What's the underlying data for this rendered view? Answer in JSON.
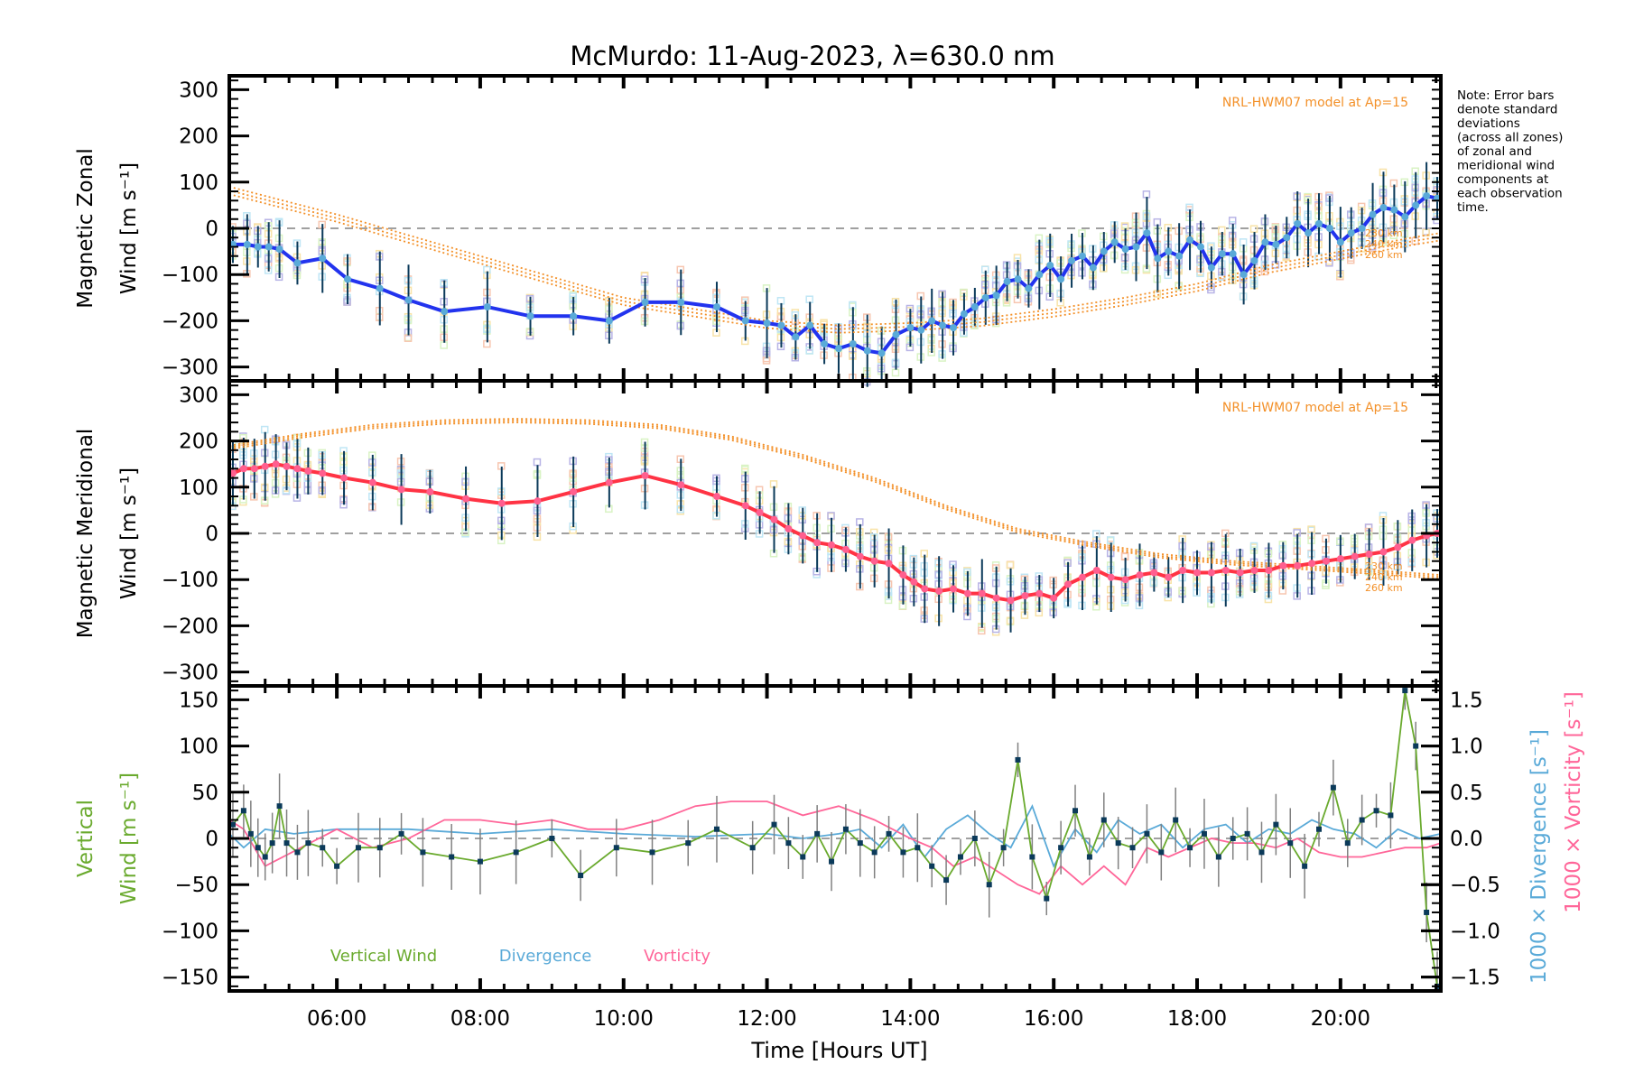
{
  "chart_data": {
    "type": "line",
    "title": "McMurdo: 11-Aug-2023, λ=630.0 nm",
    "xlabel": "Time [Hours UT]",
    "x_ticks": [
      "06:00",
      "08:00",
      "10:00",
      "12:00",
      "14:00",
      "16:00",
      "18:00",
      "20:00"
    ],
    "x_tick_hours": [
      6,
      8,
      10,
      12,
      14,
      16,
      18,
      20
    ],
    "xlim_hours": [
      4.5,
      21.4
    ],
    "note": [
      "Note: Error bars",
      "denote standard",
      "deviations",
      "(across all zones)",
      "of zonal and",
      "meridional wind",
      "components at",
      "each observation",
      "time."
    ],
    "colors": {
      "zonal_line": "#2233ee",
      "zonal_points": "#5aaad8",
      "meridional_line": "#ff3344",
      "meridional_points": "#ff5f8f",
      "model": "#f39028",
      "errorbar": "#0b3a5a",
      "vertical": "#6aaa2e",
      "divergence": "#5aaad8",
      "vorticity": "#ff6699",
      "zero_line": "#808080"
    },
    "panels": [
      {
        "id": "zonal",
        "ylabel_line1": "Magnetic Zonal",
        "ylabel_line2": "Wind [m s⁻¹]",
        "ylim": [
          -330,
          330
        ],
        "y_ticks": [
          300,
          200,
          100,
          0,
          -100,
          -200,
          -300
        ],
        "y_tick_labels": [
          "300",
          "200",
          "100",
          "0",
          "−100",
          "−200",
          "−300"
        ],
        "model_label": "NRL-HWM07 model at Ap=15",
        "model_altitudes": [
          "230 km",
          "240 km",
          "260 km"
        ],
        "series": [
          {
            "name": "Zonal wind",
            "x": [
              4.55,
              4.75,
              4.9,
              5.05,
              5.2,
              5.45,
              5.8,
              6.15,
              6.6,
              7.0,
              7.5,
              8.1,
              8.7,
              9.3,
              9.8,
              10.3,
              10.8,
              11.3,
              11.7,
              12.0,
              12.2,
              12.4,
              12.6,
              12.8,
              13.0,
              13.2,
              13.4,
              13.6,
              13.8,
              14.0,
              14.15,
              14.3,
              14.45,
              14.6,
              14.75,
              14.9,
              15.05,
              15.2,
              15.35,
              15.5,
              15.65,
              15.8,
              15.95,
              16.1,
              16.25,
              16.4,
              16.55,
              16.7,
              16.85,
              17.0,
              17.15,
              17.3,
              17.45,
              17.6,
              17.75,
              17.9,
              18.05,
              18.2,
              18.35,
              18.5,
              18.65,
              18.8,
              18.95,
              19.1,
              19.25,
              19.4,
              19.55,
              19.7,
              19.85,
              20.0,
              20.15,
              20.3,
              20.45,
              20.6,
              20.75,
              20.9,
              21.05,
              21.2,
              21.35
            ],
            "y": [
              -35,
              -35,
              -40,
              -40,
              -45,
              -75,
              -65,
              -110,
              -130,
              -155,
              -180,
              -170,
              -190,
              -190,
              -200,
              -160,
              -160,
              -170,
              -200,
              -205,
              -210,
              -235,
              -210,
              -250,
              -260,
              -250,
              -265,
              -270,
              -230,
              -215,
              -220,
              -200,
              -210,
              -215,
              -185,
              -170,
              -150,
              -145,
              -115,
              -110,
              -130,
              -100,
              -80,
              -110,
              -70,
              -60,
              -85,
              -50,
              -30,
              -45,
              -40,
              -10,
              -65,
              -50,
              -60,
              -25,
              -40,
              -85,
              -55,
              -55,
              -100,
              -70,
              -30,
              -35,
              -20,
              10,
              -10,
              10,
              0,
              -30,
              -10,
              0,
              30,
              45,
              40,
              25,
              50,
              70,
              65
            ]
          },
          {
            "name": "HWM07 model",
            "x": [
              4.5,
              6,
              8,
              10,
              12,
              13,
              14,
              15,
              16,
              17,
              18,
              19,
              20,
              21,
              21.4
            ],
            "y": [
              90,
              30,
              -60,
              -150,
              -200,
              -210,
              -205,
              -195,
              -175,
              -150,
              -120,
              -80,
              -50,
              -20,
              -10
            ]
          }
        ]
      },
      {
        "id": "meridional",
        "ylabel_line1": "Magnetic Meridional",
        "ylabel_line2": "Wind [m s⁻¹]",
        "ylim": [
          -330,
          330
        ],
        "y_ticks": [
          300,
          200,
          100,
          0,
          -100,
          -200,
          -300
        ],
        "y_tick_labels": [
          "300",
          "200",
          "100",
          "0",
          "−100",
          "−200",
          "−300"
        ],
        "model_label": "NRL-HWM07 model at Ap=15",
        "model_altitudes": [
          "230 km",
          "240 km",
          "260 km"
        ],
        "series": [
          {
            "name": "Meridional wind",
            "x": [
              4.55,
              4.7,
              4.85,
              5.0,
              5.15,
              5.3,
              5.45,
              5.6,
              5.8,
              6.1,
              6.5,
              6.9,
              7.3,
              7.8,
              8.3,
              8.8,
              9.3,
              9.8,
              10.3,
              10.8,
              11.3,
              11.7,
              11.9,
              12.1,
              12.3,
              12.5,
              12.7,
              12.9,
              13.1,
              13.3,
              13.5,
              13.7,
              13.9,
              14.05,
              14.2,
              14.4,
              14.6,
              14.8,
              15.0,
              15.2,
              15.4,
              15.6,
              15.8,
              16.0,
              16.2,
              16.4,
              16.6,
              16.8,
              17.0,
              17.2,
              17.4,
              17.6,
              17.8,
              18.0,
              18.2,
              18.4,
              18.6,
              18.8,
              19.0,
              19.2,
              19.4,
              19.6,
              19.8,
              20.0,
              20.2,
              20.4,
              20.6,
              20.8,
              21.0,
              21.2,
              21.35
            ],
            "y": [
              130,
              140,
              140,
              145,
              150,
              145,
              140,
              135,
              130,
              120,
              110,
              95,
              90,
              75,
              65,
              70,
              90,
              110,
              125,
              105,
              80,
              60,
              45,
              30,
              10,
              -5,
              -20,
              -25,
              -35,
              -50,
              -60,
              -65,
              -90,
              -105,
              -120,
              -125,
              -120,
              -130,
              -130,
              -140,
              -145,
              -135,
              -130,
              -140,
              -110,
              -95,
              -80,
              -95,
              -100,
              -90,
              -85,
              -95,
              -80,
              -85,
              -85,
              -80,
              -85,
              -80,
              -80,
              -70,
              -70,
              -65,
              -60,
              -55,
              -50,
              -45,
              -40,
              -30,
              -15,
              -5,
              0
            ]
          },
          {
            "name": "HWM07 model",
            "x": [
              4.5,
              5.5,
              6.5,
              7.5,
              8.5,
              9.5,
              10.5,
              11.5,
              12.5,
              13.5,
              14.5,
              15.5,
              16.5,
              17.5,
              18.5,
              19.5,
              20.5,
              21.4
            ],
            "y": [
              190,
              215,
              235,
              245,
              248,
              245,
              235,
              210,
              170,
              120,
              60,
              10,
              -20,
              -45,
              -60,
              -70,
              -80,
              -90
            ]
          }
        ]
      },
      {
        "id": "vertical",
        "ylabel_line1": "Vertical",
        "ylabel_line2": "Wind [m s⁻¹]",
        "ylim": [
          -165,
          165
        ],
        "y_ticks": [
          150,
          100,
          50,
          0,
          -50,
          -100,
          -150
        ],
        "y_tick_labels": [
          "150",
          "100",
          "50",
          "0",
          "−50",
          "−100",
          "−150"
        ],
        "y2label_1": "1000 × Divergence [s⁻¹]",
        "y2label_2": "1000 × Vorticity [s⁻¹]",
        "y2lim": [
          -1.65,
          1.65
        ],
        "y2_ticks": [
          1.5,
          1.0,
          0.5,
          0.0,
          -0.5,
          -1.0,
          -1.5
        ],
        "y2_tick_labels": [
          "1.5",
          "1.0",
          "0.5",
          "0.0",
          "−0.5",
          "−1.0",
          "−1.5"
        ],
        "legend": [
          "Vertical Wind",
          "Divergence",
          "Vorticity"
        ],
        "series": [
          {
            "name": "Vertical Wind",
            "x": [
              4.55,
              4.7,
              4.8,
              4.9,
              5.0,
              5.1,
              5.2,
              5.3,
              5.45,
              5.6,
              5.8,
              6.0,
              6.3,
              6.6,
              6.9,
              7.2,
              7.6,
              8.0,
              8.5,
              9.0,
              9.4,
              9.9,
              10.4,
              10.9,
              11.3,
              11.8,
              12.1,
              12.3,
              12.5,
              12.7,
              12.9,
              13.1,
              13.3,
              13.5,
              13.7,
              13.9,
              14.1,
              14.3,
              14.5,
              14.7,
              14.9,
              15.1,
              15.3,
              15.5,
              15.7,
              15.9,
              16.1,
              16.3,
              16.5,
              16.7,
              16.9,
              17.1,
              17.3,
              17.5,
              17.7,
              17.9,
              18.1,
              18.3,
              18.5,
              18.7,
              18.9,
              19.1,
              19.3,
              19.5,
              19.7,
              19.9,
              20.1,
              20.3,
              20.5,
              20.7,
              20.9,
              21.05,
              21.2,
              21.35
            ],
            "y": [
              15,
              30,
              5,
              -10,
              -20,
              -5,
              35,
              -5,
              -15,
              -5,
              -10,
              -30,
              -10,
              -10,
              5,
              -15,
              -20,
              -25,
              -15,
              0,
              -40,
              -10,
              -15,
              -5,
              10,
              -10,
              15,
              -5,
              -20,
              5,
              -25,
              10,
              -5,
              -15,
              5,
              -15,
              -10,
              -30,
              -45,
              -20,
              0,
              -50,
              -10,
              85,
              -20,
              -65,
              -10,
              30,
              -20,
              20,
              -5,
              -10,
              5,
              -15,
              20,
              -10,
              5,
              -20,
              0,
              5,
              -15,
              15,
              -5,
              -30,
              10,
              55,
              -5,
              20,
              30,
              25,
              160,
              100,
              -80,
              -160
            ]
          },
          {
            "name": "Divergence",
            "x": [
              4.5,
              4.7,
              5.0,
              5.4,
              6,
              7,
              8,
              9,
              10,
              11,
              12,
              12.5,
              13,
              13.3,
              13.6,
              13.9,
              14.2,
              14.5,
              14.8,
              15.1,
              15.4,
              15.7,
              16,
              16.3,
              16.6,
              16.9,
              17.2,
              17.5,
              17.8,
              18.1,
              18.4,
              18.7,
              19,
              19.3,
              19.6,
              19.9,
              20.2,
              20.5,
              20.8,
              21.1,
              21.4
            ],
            "y": [
              0.05,
              -0.1,
              0.1,
              0.05,
              0.1,
              0.1,
              0.05,
              0.1,
              0.05,
              0.02,
              0.05,
              0.0,
              0.05,
              0.1,
              -0.1,
              0.15,
              -0.2,
              0.1,
              0.25,
              0.05,
              -0.1,
              0.35,
              -0.3,
              0.1,
              -0.15,
              0.2,
              0.05,
              0.15,
              -0.1,
              0.1,
              0.15,
              -0.05,
              0.1,
              0.05,
              0.2,
              0.1,
              0.05,
              -0.1,
              0.1,
              0.0,
              0.05
            ]
          },
          {
            "name": "Vorticity",
            "x": [
              4.5,
              4.7,
              5.0,
              5.5,
              6.0,
              6.5,
              7.0,
              7.5,
              8.0,
              8.5,
              9.0,
              9.5,
              10.0,
              10.5,
              11.0,
              11.5,
              12.0,
              12.5,
              13.0,
              13.5,
              14.0,
              14.3,
              14.6,
              14.9,
              15.2,
              15.5,
              15.8,
              16.1,
              16.4,
              16.7,
              17.0,
              17.3,
              17.6,
              17.9,
              18.2,
              18.5,
              18.8,
              19.1,
              19.4,
              19.7,
              20.0,
              20.3,
              20.6,
              20.9,
              21.2,
              21.4
            ],
            "y": [
              0.2,
              0.1,
              -0.3,
              -0.1,
              0.1,
              -0.1,
              0.0,
              0.2,
              0.2,
              0.15,
              0.2,
              0.1,
              0.1,
              0.2,
              0.35,
              0.4,
              0.4,
              0.25,
              0.35,
              0.2,
              0.0,
              -0.1,
              -0.3,
              -0.2,
              -0.35,
              -0.5,
              -0.6,
              -0.3,
              -0.5,
              -0.3,
              -0.5,
              -0.1,
              -0.2,
              -0.1,
              0.0,
              -0.05,
              -0.05,
              -0.1,
              0.0,
              -0.15,
              -0.2,
              -0.2,
              -0.15,
              -0.1,
              -0.1,
              -0.05
            ]
          }
        ]
      }
    ]
  }
}
